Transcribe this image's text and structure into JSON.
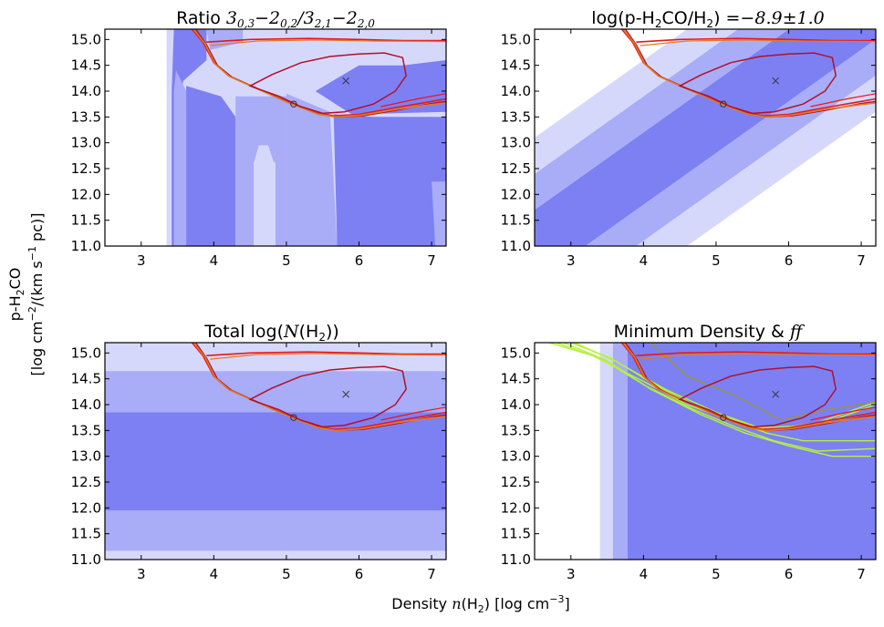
{
  "figure": {
    "xlabel": "Density n(H₂) [log cm⁻³]",
    "ylabel_line1": "p-H₂CO",
    "ylabel_line2": "[log cm⁻²/(km s⁻¹ pc)]"
  },
  "colors": {
    "band_light": "#d6d8fb",
    "band_mid": "#a9acf7",
    "band_dark": "#7d80f3",
    "contour_red": "#e8161c",
    "contour_crimson": "#b0102a",
    "contour_orange": "#e37a20",
    "contour_green": "#b4f23a",
    "contour_olive": "#9a9a20"
  },
  "chart_data": [
    {
      "type": "contour",
      "panel": "top-left",
      "title": "Ratio 3₀,₃−2₀,₂/3₂,₁−2₂,₀",
      "xlim": [
        2.5,
        7.2
      ],
      "ylim": [
        11.0,
        15.2
      ],
      "xticks": [
        3,
        4,
        5,
        6,
        7
      ],
      "yticks": [
        11.0,
        11.5,
        12.0,
        12.5,
        13.0,
        13.5,
        14.0,
        14.5,
        15.0
      ],
      "best_fit_x": {
        "x": 5.82,
        "y": 14.2
      },
      "mean_circle": {
        "x": 5.1,
        "y": 13.75
      }
    },
    {
      "type": "contour",
      "panel": "top-right",
      "title": "log(p-H₂CO/H₂) = −8.9 ± 1.0",
      "abundance": -8.9,
      "abundance_error": 1.0,
      "xlim": [
        2.5,
        7.2
      ],
      "ylim": [
        11.0,
        15.2
      ],
      "xticks": [
        3,
        4,
        5,
        6,
        7
      ],
      "yticks": [
        11.0,
        11.5,
        12.0,
        12.5,
        13.0,
        13.5,
        14.0,
        14.5,
        15.0
      ],
      "best_fit_x": {
        "x": 5.82,
        "y": 14.2
      },
      "mean_circle": {
        "x": 5.1,
        "y": 13.75
      }
    },
    {
      "type": "contour",
      "panel": "bottom-left",
      "title": "Total log(N(H₂))",
      "xlim": [
        2.5,
        7.2
      ],
      "ylim": [
        11.0,
        15.2
      ],
      "xticks": [
        3,
        4,
        5,
        6,
        7
      ],
      "yticks": [
        11.0,
        11.5,
        12.0,
        12.5,
        13.0,
        13.5,
        14.0,
        14.5,
        15.0
      ],
      "bands_y": [
        {
          "from": 13.85,
          "to": 11.95,
          "level": "dark"
        },
        {
          "from": 14.65,
          "to": 13.85,
          "level": "mid"
        },
        {
          "from": 11.95,
          "to": 11.17,
          "level": "mid"
        }
      ],
      "best_fit_x": {
        "x": 5.82,
        "y": 14.2
      },
      "mean_circle": {
        "x": 5.1,
        "y": 13.75
      }
    },
    {
      "type": "contour",
      "panel": "bottom-right",
      "title": "Minimum Density & ff",
      "xlim": [
        2.5,
        7.2
      ],
      "ylim": [
        11.0,
        15.2
      ],
      "xticks": [
        3,
        4,
        5,
        6,
        7
      ],
      "yticks": [
        11.0,
        11.5,
        12.0,
        12.5,
        13.0,
        13.5,
        14.0,
        14.5,
        15.0
      ],
      "min_density_band": {
        "from": 3.4,
        "to": 3.78
      },
      "best_fit_x": {
        "x": 5.82,
        "y": 14.2
      },
      "mean_circle": {
        "x": 5.1,
        "y": 13.75
      }
    }
  ]
}
